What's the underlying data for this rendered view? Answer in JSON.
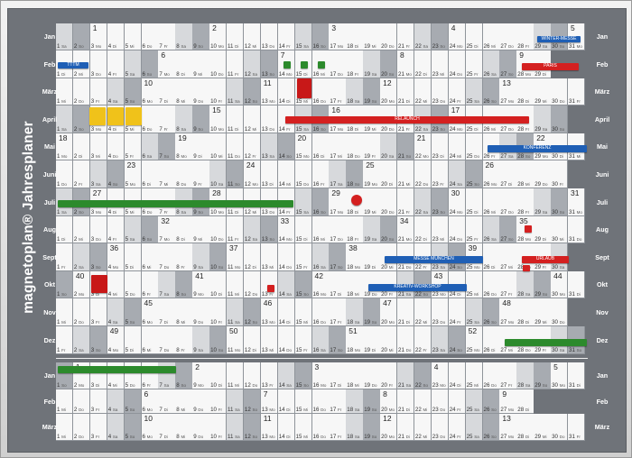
{
  "brand": "magnetoplan® Jahresplaner",
  "months": [
    "Jan",
    "Feb",
    "März",
    "April",
    "Mai",
    "Juni",
    "Juli",
    "Aug",
    "Sept",
    "Okt",
    "Nov",
    "Dez",
    "Jan",
    "Feb",
    "März"
  ],
  "weekdays": [
    "Mo",
    "Di",
    "Mi",
    "Do",
    "Fr",
    "Sa",
    "So"
  ],
  "colors": {
    "board": "#6f7379",
    "red": "#d42020",
    "blue": "#1f5fb5",
    "green": "#2c8a2c",
    "yellow": "#f0c21a"
  },
  "tags": {
    "feb_blue": "TTTM",
    "feb_red": "PARIS",
    "jan_blue": "WINTER-MESSE",
    "april_red": "RELAUNCH",
    "mai_blue": "KONFERENZ",
    "sept_blue": "MESSE MÜNCHEN",
    "sept_red": "URLAUB",
    "okt_blue": "KREATIV-WORKSHOP"
  }
}
